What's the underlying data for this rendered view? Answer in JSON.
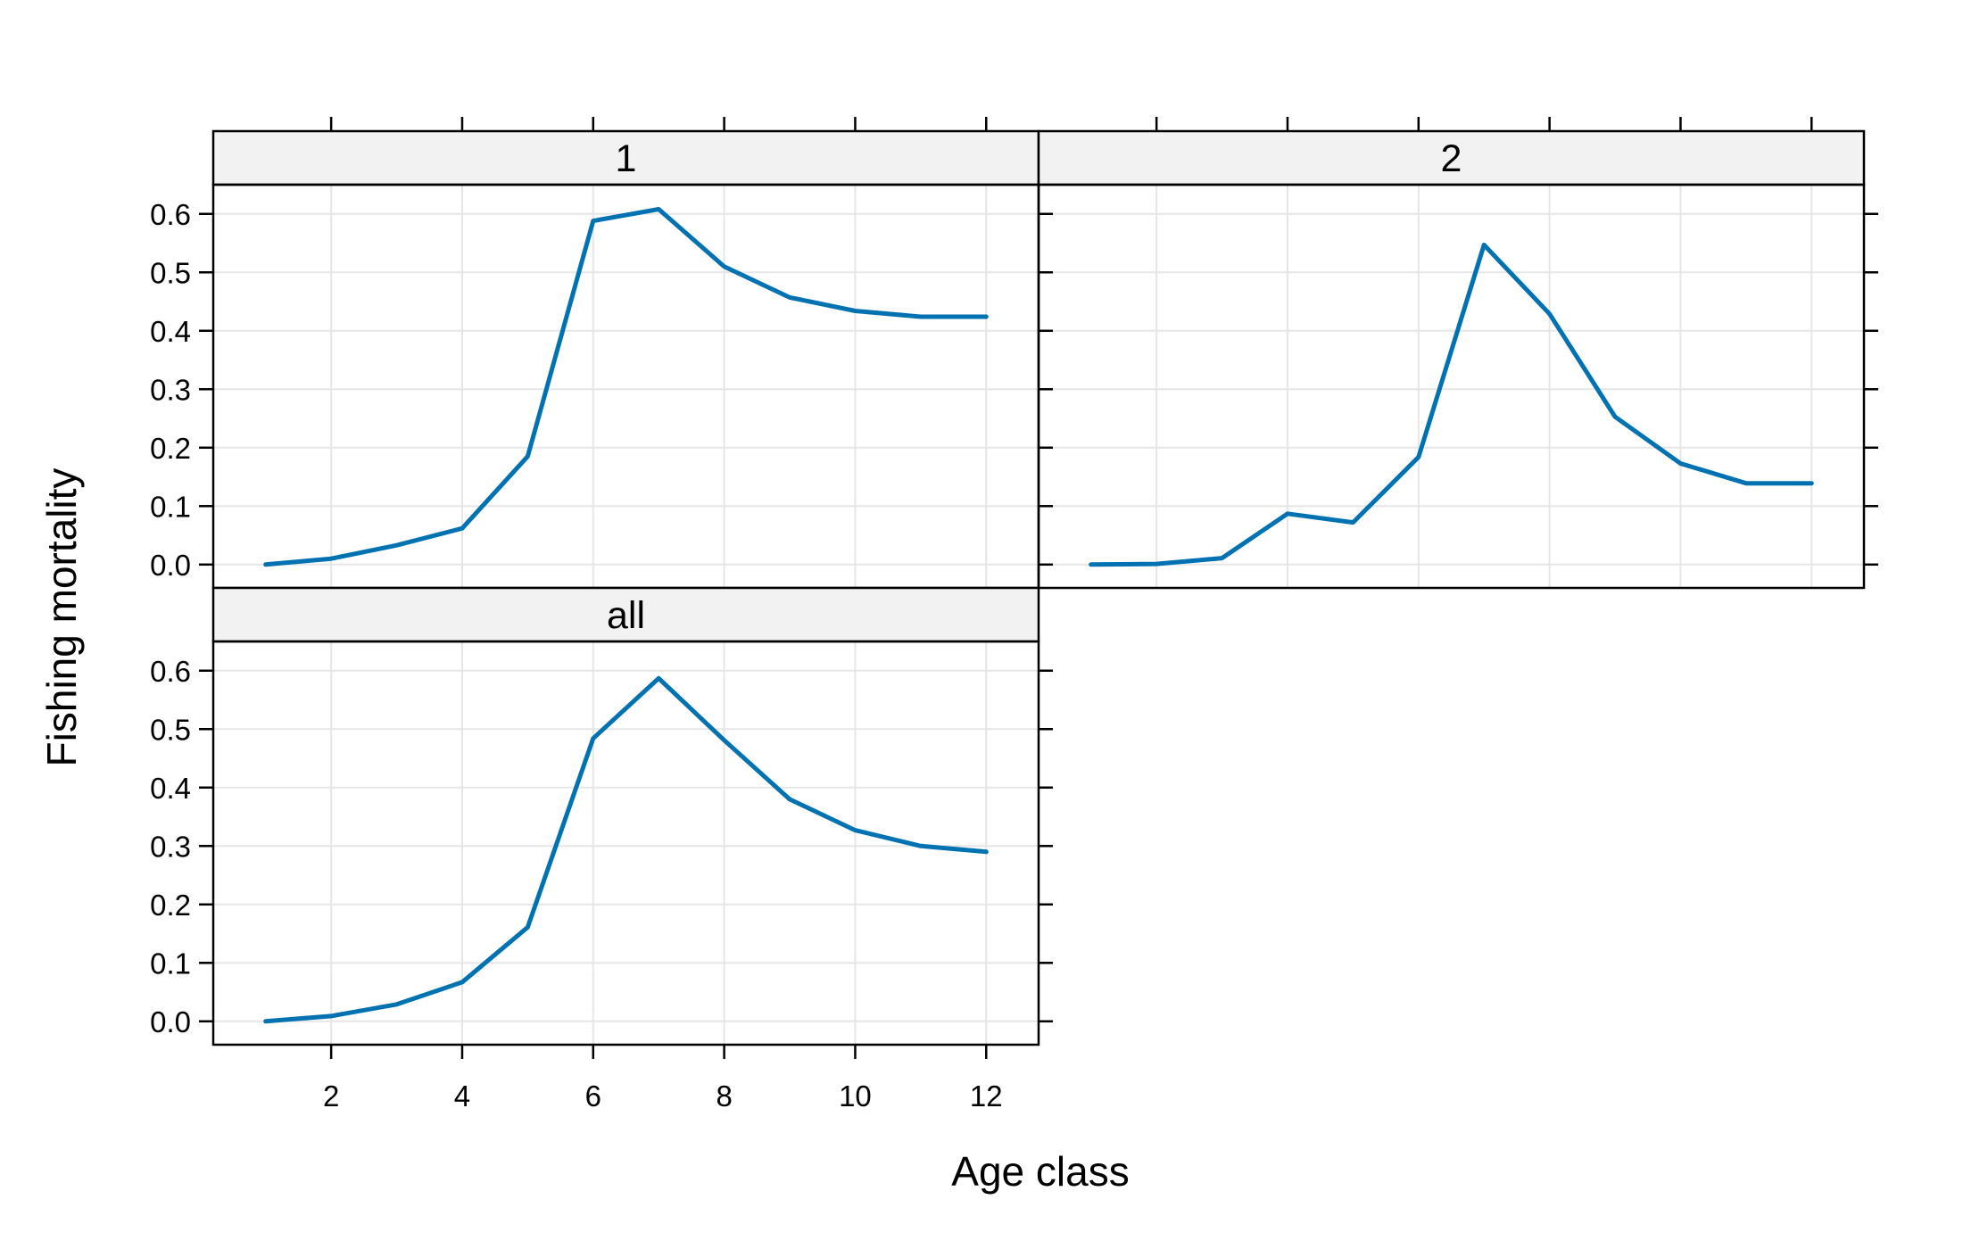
{
  "chart_data": {
    "type": "line",
    "layout": "lattice",
    "xlabel": "Age class",
    "ylabel": "Fishing mortality",
    "x": [
      1,
      2,
      3,
      4,
      5,
      6,
      7,
      8,
      9,
      10,
      11,
      12
    ],
    "xlim": [
      0.2,
      12.8
    ],
    "ylim": [
      -0.04,
      0.65
    ],
    "x_ticks": [
      2,
      4,
      6,
      8,
      10,
      12
    ],
    "y_ticks": [
      0.0,
      0.1,
      0.2,
      0.3,
      0.4,
      0.5,
      0.6
    ],
    "y_tick_labels": [
      "0.0",
      "0.1",
      "0.2",
      "0.3",
      "0.4",
      "0.5",
      "0.6"
    ],
    "grid": true,
    "line_color": "#0072B2",
    "strip_color": "#F2F2F2",
    "grid_color": "#E6E6E6",
    "panels": [
      {
        "strip": "1",
        "values": [
          0.0,
          0.01,
          0.033,
          0.062,
          0.185,
          0.588,
          0.608,
          0.51,
          0.457,
          0.434,
          0.424,
          0.424
        ]
      },
      {
        "strip": "2",
        "values": [
          0.0,
          0.001,
          0.011,
          0.087,
          0.072,
          0.184,
          0.547,
          0.429,
          0.253,
          0.173,
          0.139,
          0.139
        ]
      },
      {
        "strip": "all",
        "values": [
          0.0,
          0.009,
          0.029,
          0.067,
          0.161,
          0.484,
          0.587,
          0.481,
          0.38,
          0.327,
          0.3,
          0.29
        ]
      }
    ]
  }
}
